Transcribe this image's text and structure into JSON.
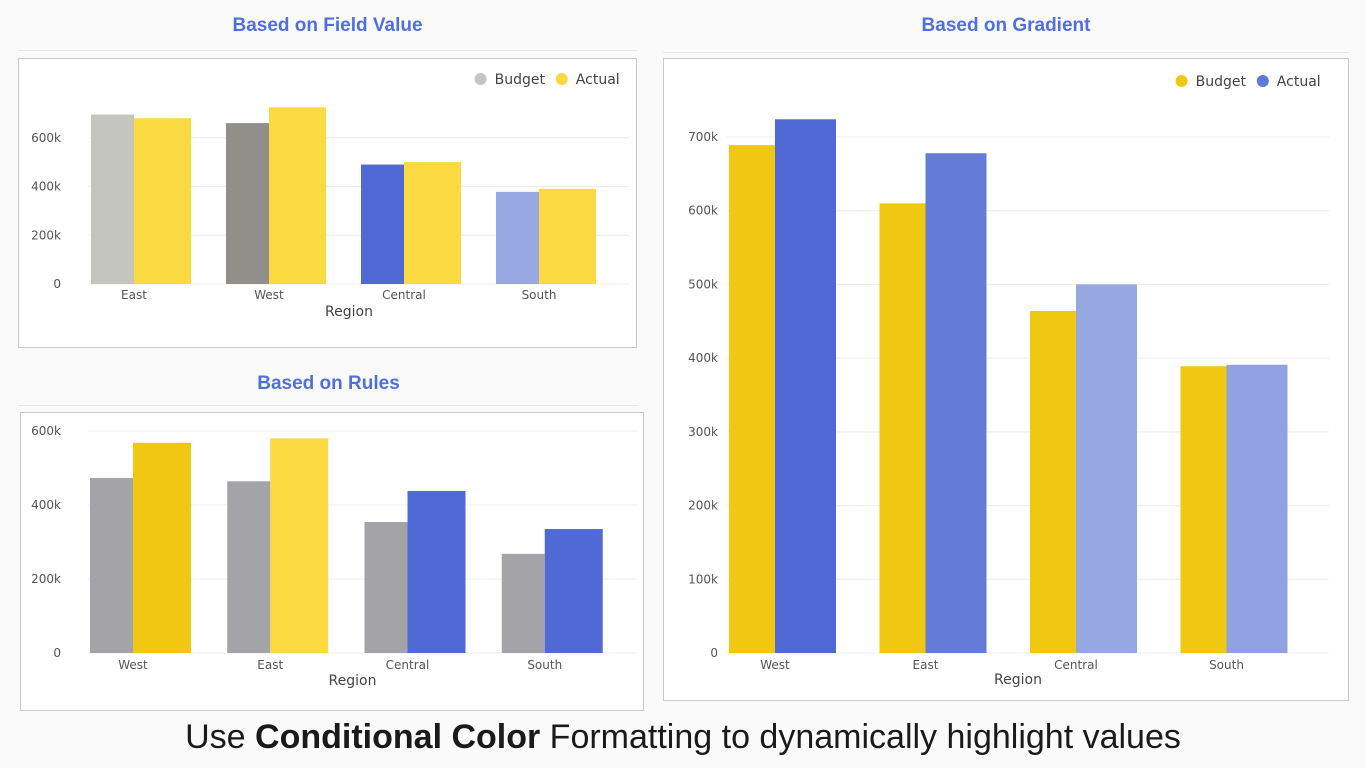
{
  "caption": {
    "prefix": "Use ",
    "bold": "Conditional Color",
    "suffix": " Formatting to dynamically highlight values"
  },
  "chart_data": [
    {
      "id": "field",
      "type": "bar",
      "title": "Based on Field Value",
      "xlabel": "Region",
      "ylabel": "",
      "categories": [
        "East",
        "West",
        "Central",
        "South"
      ],
      "ylim": [
        0,
        800000
      ],
      "yticks": [
        0,
        200000,
        400000,
        600000
      ],
      "ytick_labels": [
        "0",
        "200k",
        "400k",
        "600k"
      ],
      "grid": true,
      "legend_position": "top-right",
      "legend": [
        {
          "label": "Budget",
          "color": "#c5c5bf"
        },
        {
          "label": "Actual",
          "color": "#fbd940"
        }
      ],
      "series": [
        {
          "name": "Budget",
          "values": [
            695000,
            660000,
            490000,
            378000
          ],
          "colors": [
            "#c5c5bf",
            "#908f89",
            "#5069d4",
            "#98a8e3"
          ]
        },
        {
          "name": "Actual",
          "values": [
            680000,
            725000,
            500000,
            390000
          ],
          "colors": [
            "#fbd940",
            "#fbd940",
            "#fbd940",
            "#fbd940"
          ]
        }
      ]
    },
    {
      "id": "rules",
      "type": "bar",
      "title": "Based on Rules",
      "xlabel": "Region",
      "ylabel": "",
      "categories": [
        "West",
        "East",
        "Central",
        "South"
      ],
      "ylim": [
        0,
        600000
      ],
      "yticks": [
        0,
        200000,
        400000,
        600000
      ],
      "ytick_labels": [
        "0",
        "200k",
        "400k",
        "600k"
      ],
      "grid": true,
      "legend_position": "none",
      "legend": [],
      "series": [
        {
          "name": "Budget",
          "values": [
            473000,
            464000,
            354000,
            268000
          ],
          "colors": [
            "#a3a3a8",
            "#a3a3a8",
            "#a3a3a8",
            "#a3a3a8"
          ]
        },
        {
          "name": "Actual",
          "values": [
            568000,
            580000,
            438000,
            335000
          ],
          "colors": [
            "#f0c812",
            "#fbd940",
            "#5069d4",
            "#5069d4"
          ]
        }
      ]
    },
    {
      "id": "gradient",
      "type": "bar",
      "title": "Based on Gradient",
      "xlabel": "Region",
      "ylabel": "",
      "categories": [
        "West",
        "East",
        "Central",
        "South"
      ],
      "ylim": [
        0,
        700000
      ],
      "yticks": [
        0,
        100000,
        200000,
        300000,
        400000,
        500000,
        600000,
        700000
      ],
      "ytick_labels": [
        "0",
        "100k",
        "200k",
        "300k",
        "400k",
        "500k",
        "600k",
        "700k"
      ],
      "grid": true,
      "legend_position": "top-right",
      "legend": [
        {
          "label": "Budget",
          "color": "#f0c812"
        },
        {
          "label": "Actual",
          "color": "#5f79d8"
        }
      ],
      "series": [
        {
          "name": "Budget",
          "values": [
            689000,
            610000,
            464000,
            389000
          ],
          "colors": [
            "#f0c812",
            "#f0c812",
            "#f0c812",
            "#f0c812"
          ]
        },
        {
          "name": "Actual",
          "values": [
            724000,
            678000,
            500000,
            391000
          ],
          "colors": [
            "#5069d4",
            "#657bd8",
            "#97a7e2",
            "#92a1e2"
          ]
        }
      ]
    }
  ]
}
